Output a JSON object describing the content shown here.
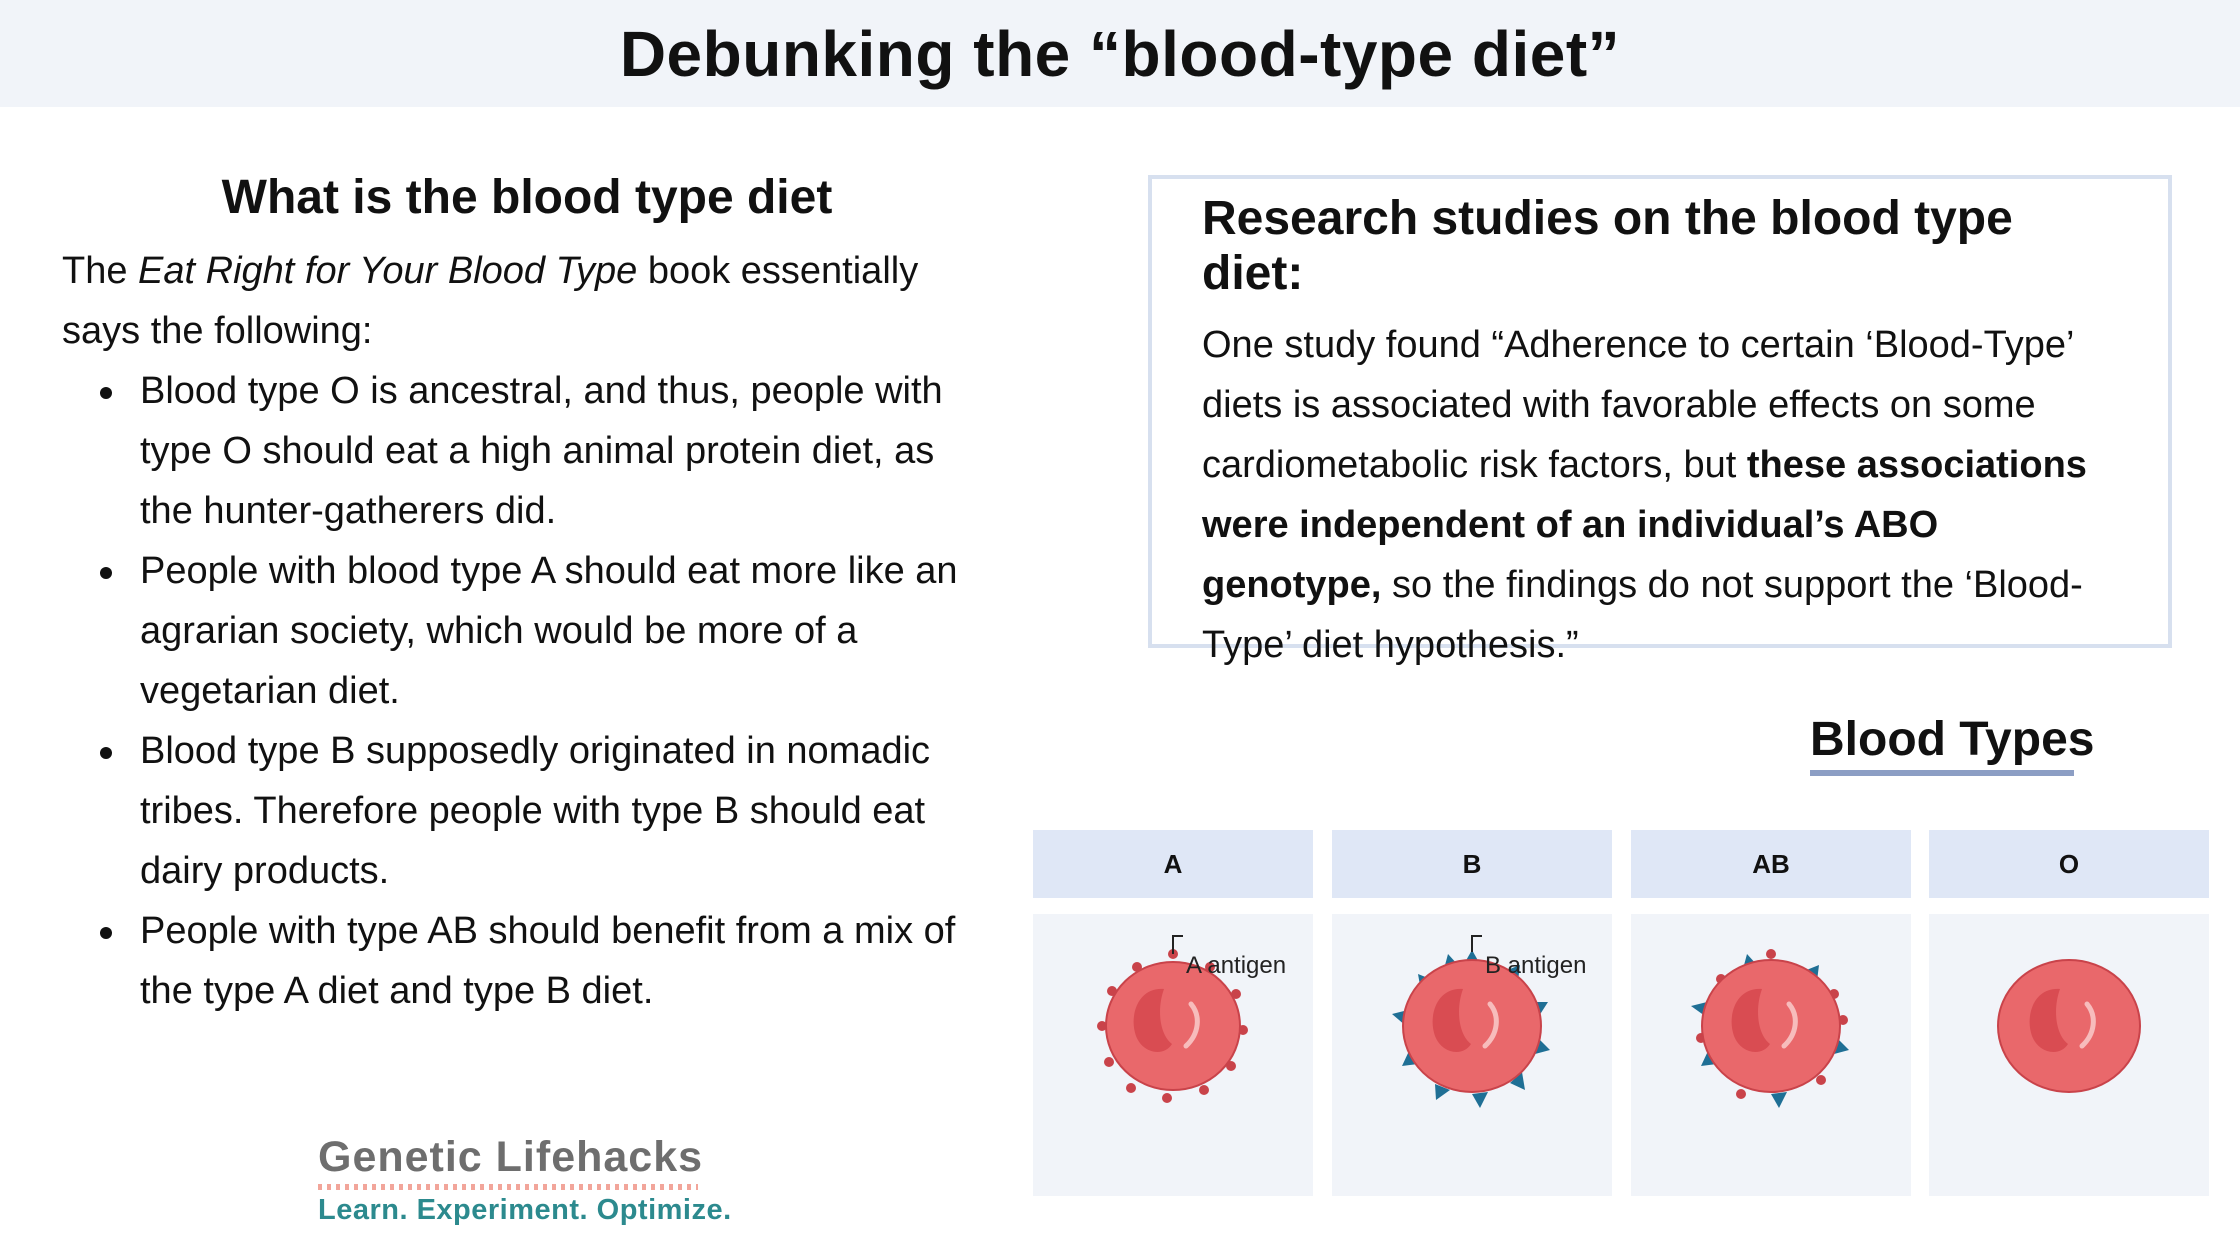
{
  "header": {
    "title": "Debunking the “blood-type diet”"
  },
  "left": {
    "heading": "What is the blood type diet",
    "intro_pre": "The ",
    "intro_book": "Eat Right for Your Blood Type",
    "intro_post": " book essentially says the following:",
    "bullets": [
      "Blood type O is ancestral, and thus, people with type O should eat a high animal protein diet, as the hunter-gatherers did.",
      "People with blood type A should eat more like an agrarian society, which would be more of a vegetarian diet.",
      "Blood type B supposedly originated in nomadic tribes. Therefore people with type B should eat dairy products.",
      "People with type AB should benefit from a mix of the type A diet and type B diet."
    ]
  },
  "research": {
    "heading": "Research studies on the blood type diet:",
    "text_pre": "One study found “Adherence to certain ‘Blood-Type’ diets is associated with favorable effects on some cardiometabolic risk factors, but ",
    "text_bold": "these associations were independent of an individual’s ABO genotype,",
    "text_post": " so the findings do not support the ‘Blood-Type’ diet hypothesis.”"
  },
  "blood_types": {
    "title": "Blood Types",
    "panels": [
      {
        "label": "A",
        "antigen_label": "A antigen"
      },
      {
        "label": "B",
        "antigen_label": "B antigen"
      },
      {
        "label": "AB",
        "antigen_label": ""
      },
      {
        "label": "O",
        "antigen_label": ""
      }
    ]
  },
  "logo": {
    "name": "Genetic Lifehacks",
    "tagline": "Learn. Experiment. Optimize."
  },
  "colors": {
    "cell_fill": "#e9686b",
    "cell_dark": "#d94c52",
    "a_antigen": "#c9434a",
    "b_antigen": "#1f6f95",
    "panel_header": "#dfe7f6",
    "panel_body": "#f1f4f9"
  }
}
